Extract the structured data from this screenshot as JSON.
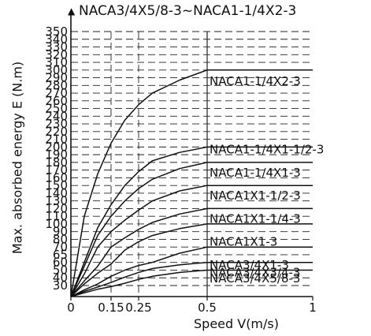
{
  "chart_data": {
    "type": "line",
    "title": "NACA3/4X5/8-3~NACA1-1/4X2-3",
    "xlabel": "Speed V(m/s)",
    "ylabel": "Max. absorbed energy E (N.m)",
    "x_ticks": [
      "0",
      "0.15",
      "0.25",
      "0.5",
      "1"
    ],
    "y_ticks": [
      "30",
      "40",
      "50",
      "60",
      "65",
      "70",
      "80",
      "90",
      "100",
      "110",
      "120",
      "130",
      "140",
      "150",
      "160",
      "170",
      "180",
      "190",
      "200",
      "210",
      "220",
      "230",
      "240",
      "250",
      "260",
      "270",
      "280",
      "290",
      "300",
      "310",
      "320",
      "330",
      "340",
      "350"
    ],
    "grid": true,
    "series": [
      {
        "name": "NACA1-1/4X2-3",
        "points": [
          [
            0,
            0
          ],
          [
            0.05,
            110
          ],
          [
            0.1,
            165
          ],
          [
            0.15,
            205
          ],
          [
            0.2,
            235
          ],
          [
            0.25,
            255
          ],
          [
            0.3,
            270
          ],
          [
            0.4,
            287
          ],
          [
            0.5,
            300
          ],
          [
            1,
            300
          ]
        ]
      },
      {
        "name": "NACA1-1/4X1-1/2-3",
        "points": [
          [
            0,
            0
          ],
          [
            0.05,
            60
          ],
          [
            0.1,
            95
          ],
          [
            0.15,
            125
          ],
          [
            0.2,
            150
          ],
          [
            0.25,
            168
          ],
          [
            0.3,
            182
          ],
          [
            0.4,
            193
          ],
          [
            0.5,
            200
          ],
          [
            1,
            200
          ]
        ]
      },
      {
        "name": "NACA1-1/4X1-3",
        "points": [
          [
            0,
            0
          ],
          [
            0.05,
            55
          ],
          [
            0.1,
            85
          ],
          [
            0.15,
            110
          ],
          [
            0.2,
            130
          ],
          [
            0.25,
            146
          ],
          [
            0.3,
            158
          ],
          [
            0.4,
            172
          ],
          [
            0.5,
            180
          ],
          [
            1,
            180
          ]
        ]
      },
      {
        "name": "NACA1X1-1/2-3",
        "points": [
          [
            0,
            0
          ],
          [
            0.05,
            45
          ],
          [
            0.1,
            70
          ],
          [
            0.15,
            90
          ],
          [
            0.2,
            105
          ],
          [
            0.25,
            118
          ],
          [
            0.3,
            130
          ],
          [
            0.4,
            143
          ],
          [
            0.5,
            150
          ],
          [
            1,
            150
          ]
        ]
      },
      {
        "name": "NACA1X1-1/4-3",
        "points": [
          [
            0,
            0
          ],
          [
            0.05,
            36
          ],
          [
            0.1,
            55
          ],
          [
            0.15,
            70
          ],
          [
            0.2,
            82
          ],
          [
            0.25,
            93
          ],
          [
            0.3,
            102
          ],
          [
            0.4,
            113
          ],
          [
            0.5,
            120
          ],
          [
            1,
            120
          ]
        ]
      },
      {
        "name": "NACA1X1-3",
        "points": [
          [
            0,
            0
          ],
          [
            0.05,
            32
          ],
          [
            0.1,
            46
          ],
          [
            0.15,
            58
          ],
          [
            0.2,
            68
          ],
          [
            0.25,
            77
          ],
          [
            0.3,
            85
          ],
          [
            0.4,
            94
          ],
          [
            0.5,
            100
          ],
          [
            1,
            100
          ]
        ]
      },
      {
        "name": "NACA3/4X1-3",
        "points": [
          [
            0,
            0
          ],
          [
            0.05,
            18
          ],
          [
            0.1,
            32
          ],
          [
            0.15,
            42
          ],
          [
            0.2,
            50
          ],
          [
            0.25,
            56
          ],
          [
            0.3,
            60
          ],
          [
            0.4,
            66
          ],
          [
            0.5,
            70
          ],
          [
            1,
            70
          ]
        ]
      },
      {
        "name": "NACA3/4X3/4-3",
        "points": [
          [
            0,
            0
          ],
          [
            0.05,
            14
          ],
          [
            0.1,
            26
          ],
          [
            0.15,
            34
          ],
          [
            0.2,
            41
          ],
          [
            0.25,
            47
          ],
          [
            0.3,
            52
          ],
          [
            0.4,
            57
          ],
          [
            0.5,
            60
          ],
          [
            1,
            60
          ]
        ]
      },
      {
        "name": "NACA3/4X5/8-3",
        "points": [
          [
            0,
            0
          ],
          [
            0.05,
            10
          ],
          [
            0.1,
            20
          ],
          [
            0.15,
            27
          ],
          [
            0.2,
            33
          ],
          [
            0.25,
            38
          ],
          [
            0.3,
            42
          ],
          [
            0.4,
            47
          ],
          [
            0.5,
            50
          ],
          [
            1,
            50
          ]
        ]
      }
    ]
  }
}
